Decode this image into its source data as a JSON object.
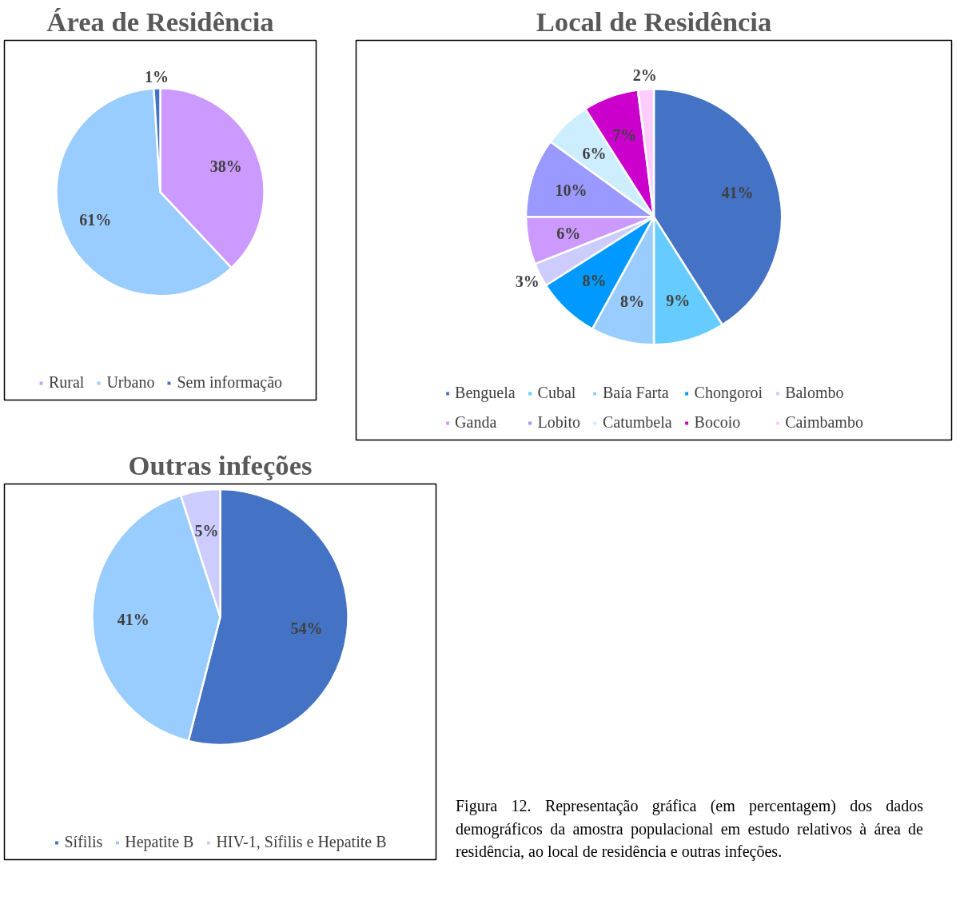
{
  "chart_data": [
    {
      "type": "pie",
      "title": "Área de Residência",
      "categories": [
        "Rural",
        "Urbano",
        "Sem informação"
      ],
      "values": [
        38,
        61,
        1
      ],
      "value_labels": [
        "38%",
        "61%",
        "1%"
      ],
      "colors": [
        "#cc99ff",
        "#99ccff",
        "#4472c4"
      ],
      "legend": "bottom"
    },
    {
      "type": "pie",
      "title": "Local de Residência",
      "categories": [
        "Benguela",
        "Cubal",
        "Baía Farta",
        "Chongoroi",
        "Balombo",
        "Ganda",
        "Lobito",
        "Catumbela",
        "Bocoio",
        "Caimbambo"
      ],
      "values": [
        41,
        9,
        8,
        8,
        3,
        6,
        10,
        6,
        7,
        2
      ],
      "value_labels": [
        "41%",
        "9%",
        "8%",
        "8%",
        "3%",
        "6%",
        "10%",
        "6%",
        "7%",
        "2%"
      ],
      "colors": [
        "#4472c4",
        "#66ccff",
        "#99ccff",
        "#0099ff",
        "#ccccff",
        "#cc99ff",
        "#9999ff",
        "#cceeff",
        "#cc00cc",
        "#ffccff"
      ],
      "legend": "bottom"
    },
    {
      "type": "pie",
      "title": "Outras infeções",
      "categories": [
        "Sífilis",
        "Hepatite B",
        "HIV-1, Sífilis e Hepatite B"
      ],
      "values": [
        54,
        41,
        5
      ],
      "value_labels": [
        "54%",
        "41%",
        "5%"
      ],
      "colors": [
        "#4472c4",
        "#99ccff",
        "#ccccff"
      ],
      "legend": "bottom",
      "annotations": [
        "Figura 12. Representação gráfica (em percentagem) dos dados demográficos da amostra populacional em estudo relativos à área de residência, ao local de residência e outras infeções."
      ]
    }
  ]
}
